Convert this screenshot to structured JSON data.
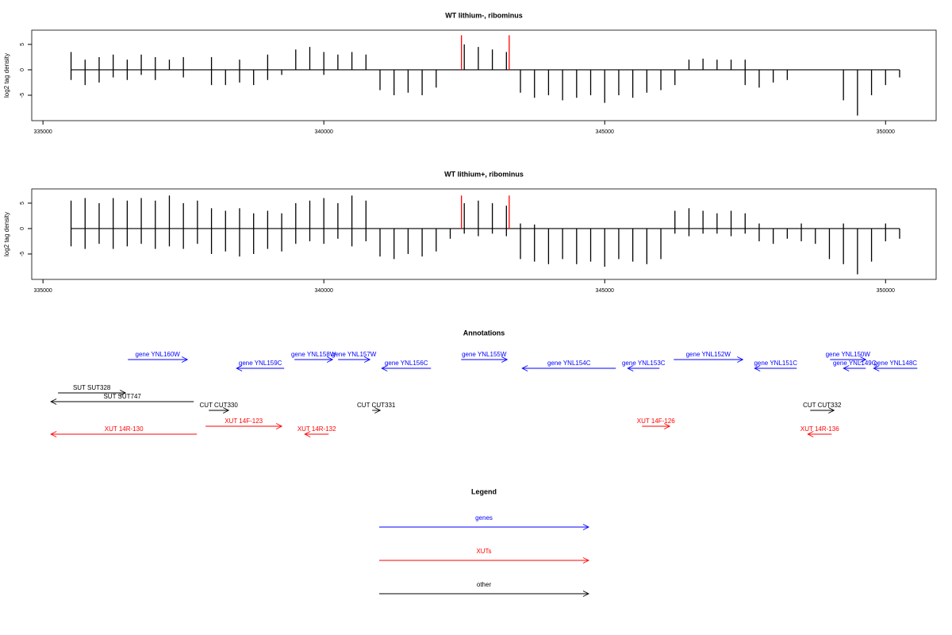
{
  "chart_data": [
    {
      "type": "spike",
      "title": "WT lithium-, ribominus",
      "y_label": "log2 tag density",
      "xlim": [
        334800,
        350900
      ],
      "ylim": [
        -10,
        7.8
      ],
      "xticks": [
        335000,
        340000,
        345000,
        350000
      ],
      "yticks": [
        -5,
        0,
        5
      ],
      "x": [
        335500,
        335750,
        336000,
        336250,
        336500,
        336750,
        337000,
        337250,
        337500,
        337750,
        338000,
        338250,
        338500,
        338750,
        339000,
        339250,
        339500,
        339750,
        340000,
        340250,
        340500,
        340750,
        341000,
        341250,
        341500,
        341750,
        342000,
        342250,
        342500,
        342750,
        343000,
        343250,
        343500,
        343750,
        344000,
        344250,
        344500,
        344750,
        345000,
        345250,
        345500,
        345750,
        346000,
        346250,
        346500,
        346750,
        347000,
        347250,
        347500,
        347750,
        348000,
        348250,
        348500,
        348750,
        349000,
        349250,
        349500,
        349750,
        350000,
        350250
      ],
      "series": [
        {
          "color": "#000000",
          "values": [
            3.5,
            2,
            2.5,
            3,
            2,
            3,
            2.5,
            2,
            2.5,
            null,
            2.5,
            null,
            2,
            null,
            3,
            null,
            4,
            4.5,
            3.5,
            3,
            3.5,
            3,
            null,
            null,
            null,
            null,
            null,
            null,
            5,
            4.5,
            4,
            3.5,
            null,
            null,
            null,
            null,
            null,
            null,
            null,
            null,
            null,
            null,
            null,
            null,
            2,
            2.2,
            2,
            2,
            2,
            null,
            null,
            null,
            null,
            null,
            null,
            null,
            null,
            null,
            null,
            null
          ]
        },
        {
          "color": "#000000",
          "values": [
            -2,
            -3,
            -2.5,
            -1.5,
            -2,
            -1,
            -2,
            null,
            -1.5,
            null,
            -3,
            -3,
            -2.5,
            -3,
            -2,
            -1,
            null,
            null,
            -1,
            null,
            null,
            null,
            -4,
            -5,
            -4.5,
            -5,
            -3.5,
            null,
            null,
            null,
            null,
            null,
            -4.5,
            -5.5,
            -5,
            -6,
            -5.5,
            -5,
            -6.5,
            -5,
            -5.5,
            -4.5,
            -4,
            -3,
            null,
            null,
            null,
            null,
            -3,
            -3.5,
            -2.5,
            -2,
            null,
            null,
            null,
            -6,
            -9,
            -5,
            -3,
            -1.5
          ]
        },
        {
          "color": "#ff0000",
          "x": [
            342450,
            343300
          ],
          "values": [
            6.8,
            6.8
          ]
        }
      ]
    },
    {
      "type": "spike",
      "title": "WT lithium+, ribominus",
      "y_label": "log2 tag density",
      "xlim": [
        334800,
        350900
      ],
      "ylim": [
        -10,
        7.8
      ],
      "xticks": [
        335000,
        340000,
        345000,
        350000
      ],
      "yticks": [
        -5,
        0,
        5
      ],
      "x": [
        335500,
        335750,
        336000,
        336250,
        336500,
        336750,
        337000,
        337250,
        337500,
        337750,
        338000,
        338250,
        338500,
        338750,
        339000,
        339250,
        339500,
        339750,
        340000,
        340250,
        340500,
        340750,
        341000,
        341250,
        341500,
        341750,
        342000,
        342250,
        342500,
        342750,
        343000,
        343250,
        343500,
        343750,
        344000,
        344250,
        344500,
        344750,
        345000,
        345250,
        345500,
        345750,
        346000,
        346250,
        346500,
        346750,
        347000,
        347250,
        347500,
        347750,
        348000,
        348250,
        348500,
        348750,
        349000,
        349250,
        349500,
        349750,
        350000,
        350250
      ],
      "series": [
        {
          "color": "#000000",
          "values": [
            5.5,
            6,
            5,
            6,
            5.5,
            6,
            5.5,
            6.5,
            5,
            5.5,
            4,
            3.5,
            4,
            3,
            3.5,
            3,
            5,
            5.5,
            6,
            5,
            6.5,
            5.5,
            null,
            null,
            null,
            null,
            null,
            null,
            5,
            5.5,
            5,
            4.5,
            1,
            0.8,
            null,
            null,
            null,
            null,
            null,
            null,
            null,
            null,
            null,
            3.5,
            4,
            3.5,
            3,
            3.5,
            3,
            1,
            null,
            null,
            1,
            null,
            null,
            1,
            null,
            null,
            1,
            null
          ]
        },
        {
          "color": "#000000",
          "values": [
            -3.5,
            -4,
            -3,
            -4,
            -3.5,
            -3,
            -4,
            -3.5,
            -4,
            -3,
            -5,
            -4.5,
            -5.5,
            -5,
            -4,
            -4.5,
            -3,
            -2.5,
            -3,
            -2,
            -3.5,
            -2.5,
            -5.5,
            -6,
            -5,
            -5.5,
            -4.5,
            -2,
            -1,
            -1.5,
            -1,
            -1.5,
            -6,
            -6.5,
            -7,
            -6,
            -7,
            -6.5,
            -7.5,
            -6,
            -6.5,
            -7,
            -6,
            -1,
            -1.5,
            -1,
            -1,
            -1.5,
            -1,
            -2.5,
            -3,
            -2,
            -2.5,
            -3,
            -6,
            -7,
            -9,
            -6.5,
            -2.5,
            -2
          ]
        },
        {
          "color": "#ff0000",
          "x": [
            342450,
            343300
          ],
          "values": [
            6.5,
            6.5
          ]
        }
      ]
    }
  ],
  "annotations": {
    "title": "Annotations",
    "features": [
      {
        "label": "gene YNL160W",
        "from": 336511,
        "to": 337571,
        "color": "#0000ff"
      },
      {
        "label": "gene YNL159C",
        "from": 339294,
        "to": 338446,
        "color": "#0000ff"
      },
      {
        "label": "gene YNL158W",
        "from": 339477,
        "to": 340155,
        "color": "#0000ff"
      },
      {
        "label": "gene YNL157W",
        "from": 340254,
        "to": 340819,
        "color": "#0000ff"
      },
      {
        "label": "gene YNL156C",
        "from": 341907,
        "to": 341031,
        "color": "#0000ff"
      },
      {
        "label": "gene YNL155W",
        "from": 342444,
        "to": 343263,
        "color": "#0000ff"
      },
      {
        "label": "gene YNL154C",
        "from": 345198,
        "to": 343531,
        "color": "#0000ff"
      },
      {
        "label": "gene YNL153C",
        "from": 345975,
        "to": 345410,
        "color": "#0000ff"
      },
      {
        "label": "gene YNL152W",
        "from": 346229,
        "to": 347458,
        "color": "#0000ff"
      },
      {
        "label": "gene YNL151C",
        "from": 348418,
        "to": 347669,
        "color": "#0000ff"
      },
      {
        "label": "gene YNL150W",
        "from": 349011,
        "to": 349647,
        "color": "#0000ff"
      },
      {
        "label": "gene YNL149C",
        "from": 349647,
        "to": 349251,
        "color": "#0000ff"
      },
      {
        "label": "gene YNL148C",
        "from": 350565,
        "to": 349788,
        "color": "#0000ff"
      },
      {
        "label": "SUT SUT328",
        "from": 335268,
        "to": 336469,
        "color": "#000000"
      },
      {
        "label": "SUT SUT747",
        "from": 337684,
        "to": 335141,
        "color": "#000000"
      },
      {
        "label": "CUT CUT330",
        "from": 337952,
        "to": 338305,
        "color": "#000000"
      },
      {
        "label": "CUT CUT331",
        "from": 340861,
        "to": 341003,
        "color": "#000000"
      },
      {
        "label": "CUT CUT332",
        "from": 348658,
        "to": 349082,
        "color": "#000000"
      },
      {
        "label": "XUT 14R-130",
        "from": 337740,
        "to": 335141,
        "color": "#ff0000"
      },
      {
        "label": "XUT 14F-123",
        "from": 337895,
        "to": 339251,
        "color": "#ff0000"
      },
      {
        "label": "XUT 14R-132",
        "from": 340085,
        "to": 339661,
        "color": "#ff0000"
      },
      {
        "label": "XUT 14F-126",
        "from": 345664,
        "to": 346158,
        "color": "#ff0000"
      },
      {
        "label": "XUT 14R-136",
        "from": 349040,
        "to": 348616,
        "color": "#ff0000"
      }
    ]
  },
  "legend": {
    "title": "Legend",
    "items": [
      {
        "label": "genes",
        "color": "#0000ff"
      },
      {
        "label": "XUTs",
        "color": "#ff0000"
      },
      {
        "label": "other",
        "color": "#000000"
      }
    ]
  }
}
